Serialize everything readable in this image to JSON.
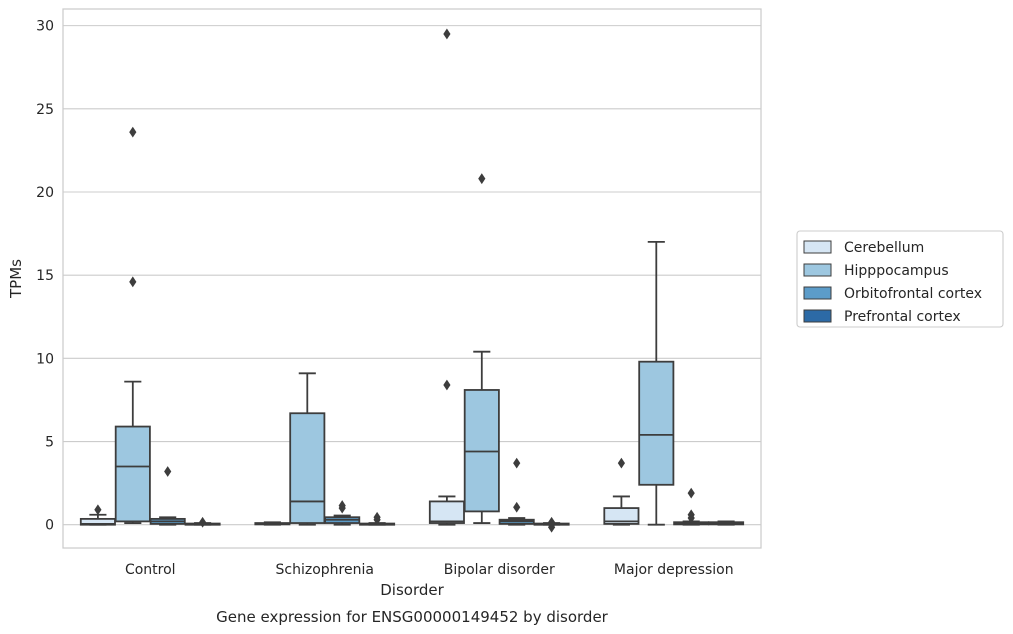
{
  "chart_data": {
    "type": "box",
    "caption": "Gene expression for ENSG00000149452 by disorder",
    "xlabel": "Disorder",
    "ylabel": "TPMs",
    "ylim": [
      -1.4,
      31
    ],
    "yticks": [
      0,
      5,
      10,
      15,
      20,
      25,
      30
    ],
    "grid": "horizontal",
    "legend_position": "right",
    "categories": [
      "Control",
      "Schizophrenia",
      "Bipolar disorder",
      "Major depression"
    ],
    "series": [
      {
        "name": "Cerebellum",
        "color": "#d6e6f4",
        "boxes": [
          {
            "whislo": 0.0,
            "q1": 0.0,
            "med": 0.05,
            "q3": 0.35,
            "whishi": 0.6,
            "fliers": [
              0.9
            ]
          },
          {
            "whislo": 0.0,
            "q1": 0.02,
            "med": 0.05,
            "q3": 0.1,
            "whishi": 0.15,
            "fliers": []
          },
          {
            "whislo": 0.0,
            "q1": 0.1,
            "med": 0.2,
            "q3": 1.4,
            "whishi": 1.7,
            "fliers": [
              8.4,
              29.5
            ]
          },
          {
            "whislo": 0.0,
            "q1": 0.05,
            "med": 0.2,
            "q3": 1.0,
            "whishi": 1.7,
            "fliers": [
              3.7
            ]
          }
        ]
      },
      {
        "name": "Hipppocampus",
        "color": "#9dc7e0",
        "boxes": [
          {
            "whislo": 0.1,
            "q1": 0.2,
            "med": 3.5,
            "q3": 5.9,
            "whishi": 8.6,
            "fliers": [
              14.6,
              23.6
            ]
          },
          {
            "whislo": 0.0,
            "q1": 0.1,
            "med": 1.4,
            "q3": 6.7,
            "whishi": 9.1,
            "fliers": []
          },
          {
            "whislo": 0.1,
            "q1": 0.8,
            "med": 4.4,
            "q3": 8.1,
            "whishi": 10.4,
            "fliers": [
              20.8
            ]
          },
          {
            "whislo": 0.0,
            "q1": 2.4,
            "med": 5.4,
            "q3": 9.8,
            "whishi": 17.0,
            "fliers": []
          }
        ]
      },
      {
        "name": "Orbitofrontal cortex",
        "color": "#5c9cc9",
        "boxes": [
          {
            "whislo": 0.0,
            "q1": 0.05,
            "med": 0.2,
            "q3": 0.35,
            "whishi": 0.45,
            "fliers": [
              3.2
            ]
          },
          {
            "whislo": 0.0,
            "q1": 0.1,
            "med": 0.3,
            "q3": 0.45,
            "whishi": 0.55,
            "fliers": [
              1.0,
              1.15
            ]
          },
          {
            "whislo": 0.0,
            "q1": 0.05,
            "med": 0.2,
            "q3": 0.3,
            "whishi": 0.4,
            "fliers": [
              1.05,
              3.7
            ]
          },
          {
            "whislo": 0.0,
            "q1": 0.02,
            "med": 0.08,
            "q3": 0.15,
            "whishi": 0.2,
            "fliers": [
              0.4,
              0.6,
              1.9
            ]
          }
        ]
      },
      {
        "name": "Prefrontal cortex",
        "color": "#2c6aa6",
        "boxes": [
          {
            "whislo": 0.0,
            "q1": 0.0,
            "med": 0.03,
            "q3": 0.07,
            "whishi": 0.1,
            "fliers": [
              0.15
            ]
          },
          {
            "whislo": 0.0,
            "q1": 0.0,
            "med": 0.03,
            "q3": 0.07,
            "whishi": 0.1,
            "fliers": [
              0.3,
              0.45
            ]
          },
          {
            "whislo": 0.0,
            "q1": 0.0,
            "med": 0.03,
            "q3": 0.07,
            "whishi": 0.1,
            "fliers": [
              -0.15,
              0.0,
              0.15
            ]
          },
          {
            "whislo": 0.0,
            "q1": 0.02,
            "med": 0.08,
            "q3": 0.15,
            "whishi": 0.2,
            "fliers": []
          }
        ]
      }
    ]
  }
}
